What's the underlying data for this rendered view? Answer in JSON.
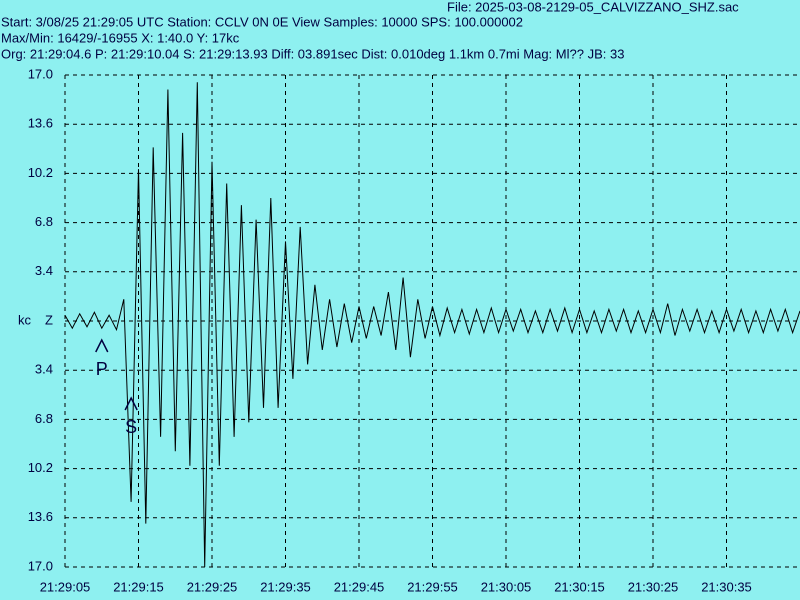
{
  "chart_data": {
    "type": "line",
    "header": {
      "file": "File: 2025-03-08-2129-05_CALVIZZANO_SHZ.sac",
      "start": "Start: 3/08/25 21:29:05 UTC Station: CCLV 0N 0E View Samples: 10000  SPS: 100.000002",
      "maxmin": "Max/Min: 16429/-16955 X: 1:40.0 Y: 17kc",
      "origin": "Org: 21:29:04.6 P: 21:29:10.04 S: 21:29:13.93 Diff: 03.891sec Dist: 0.010deg 1.1km 0.7mi  Mag: Ml?? JB: 33"
    },
    "y_label": "kc",
    "annotations": [
      {
        "text": "P",
        "x": "21:29:10"
      },
      {
        "text": "S",
        "x": "21:29:14"
      }
    ],
    "x": [
      "21:29:05",
      "21:29:06",
      "21:29:07",
      "21:29:08",
      "21:29:09",
      "21:29:10",
      "21:29:11",
      "21:29:12",
      "21:29:13",
      "21:29:14",
      "21:29:15",
      "21:29:16",
      "21:29:17",
      "21:29:18",
      "21:29:19",
      "21:29:20",
      "21:29:21",
      "21:29:22",
      "21:29:23",
      "21:29:24",
      "21:29:25",
      "21:29:26",
      "21:29:27",
      "21:29:28",
      "21:29:29",
      "21:29:30",
      "21:29:31",
      "21:29:32",
      "21:29:33",
      "21:29:34",
      "21:29:35",
      "21:29:36",
      "21:29:37",
      "21:29:38",
      "21:29:39",
      "21:29:40",
      "21:29:41",
      "21:29:42",
      "21:29:43",
      "21:29:44",
      "21:29:45",
      "21:29:46",
      "21:29:47",
      "21:29:48",
      "21:29:49",
      "21:29:50",
      "21:29:51",
      "21:29:52",
      "21:29:53",
      "21:29:54",
      "21:29:55",
      "21:29:56",
      "21:29:57",
      "21:29:58",
      "21:29:59",
      "21:30:00",
      "21:30:01",
      "21:30:02",
      "21:30:03",
      "21:30:04",
      "21:30:05",
      "21:30:06",
      "21:30:07",
      "21:30:08",
      "21:30:09",
      "21:30:10",
      "21:30:11",
      "21:30:12",
      "21:30:13",
      "21:30:14",
      "21:30:15",
      "21:30:16",
      "21:30:17",
      "21:30:18",
      "21:30:19",
      "21:30:20",
      "21:30:21",
      "21:30:22",
      "21:30:23",
      "21:30:24",
      "21:30:25",
      "21:30:26",
      "21:30:27",
      "21:30:28",
      "21:30:29",
      "21:30:30",
      "21:30:31",
      "21:30:32",
      "21:30:33",
      "21:30:34",
      "21:30:35",
      "21:30:36",
      "21:30:37",
      "21:30:38",
      "21:30:39",
      "21:30:40",
      "21:30:41",
      "21:30:42",
      "21:30:43",
      "21:30:44",
      "21:30:45"
    ],
    "series": [
      {
        "color": "#000000",
        "values": [
          0.4,
          -0.5,
          0.5,
          -0.4,
          0.6,
          -0.5,
          0.4,
          -0.6,
          1.5,
          -12.5,
          10.5,
          -14,
          12,
          -8,
          16,
          -9,
          13,
          -10,
          16.5,
          -17,
          11,
          -10,
          9.5,
          -8,
          8,
          -7,
          7,
          -6,
          8.5,
          -6,
          5.5,
          -4,
          6.5,
          -3,
          2.5,
          -2,
          1.5,
          -1.8,
          1.2,
          -1.5,
          1,
          -1.2,
          1,
          -1,
          2,
          -2,
          3,
          -2.5,
          1.5,
          -1.2,
          1,
          -1,
          0.9,
          -0.8,
          0.8,
          -0.9,
          0.8,
          -0.8,
          0.9,
          -0.8,
          0.8,
          -0.7,
          0.8,
          -0.8,
          0.7,
          -0.8,
          0.8,
          -0.7,
          0.9,
          -0.8,
          0.8,
          -0.8,
          0.7,
          -0.8,
          0.8,
          -0.7,
          0.8,
          -0.8,
          0.7,
          -0.8,
          0.8,
          -0.8,
          1.2,
          -1,
          0.8,
          -0.7,
          0.8,
          -0.8,
          0.7,
          -0.8,
          0.8,
          -0.7,
          0.8,
          -0.8,
          0.7,
          -0.8,
          0.8,
          -0.7,
          0.8,
          -0.8,
          0.7
        ]
      }
    ],
    "xlim": [
      "21:29:05",
      "21:30:45"
    ],
    "xticks": [
      "21:29:05",
      "21:29:15",
      "21:29:25",
      "21:29:35",
      "21:29:45",
      "21:29:55",
      "21:30:05",
      "21:30:15",
      "21:30:25",
      "21:30:35"
    ],
    "ylim": [
      -17,
      17
    ],
    "yticks": [
      {
        "value": 17,
        "label": "17.0"
      },
      13.6,
      10.2,
      6.8,
      3.4,
      {
        "value": 0,
        "label": "Z"
      },
      {
        "value": -3.4,
        "label": "3.4"
      },
      {
        "value": -6.8,
        "label": "6.8"
      },
      {
        "value": -10.2,
        "label": "10.2"
      },
      {
        "value": -13.6,
        "label": "13.6"
      },
      {
        "value": -17,
        "label": "17.0"
      }
    ],
    "grid": true,
    "background": "#8ef0f0"
  }
}
